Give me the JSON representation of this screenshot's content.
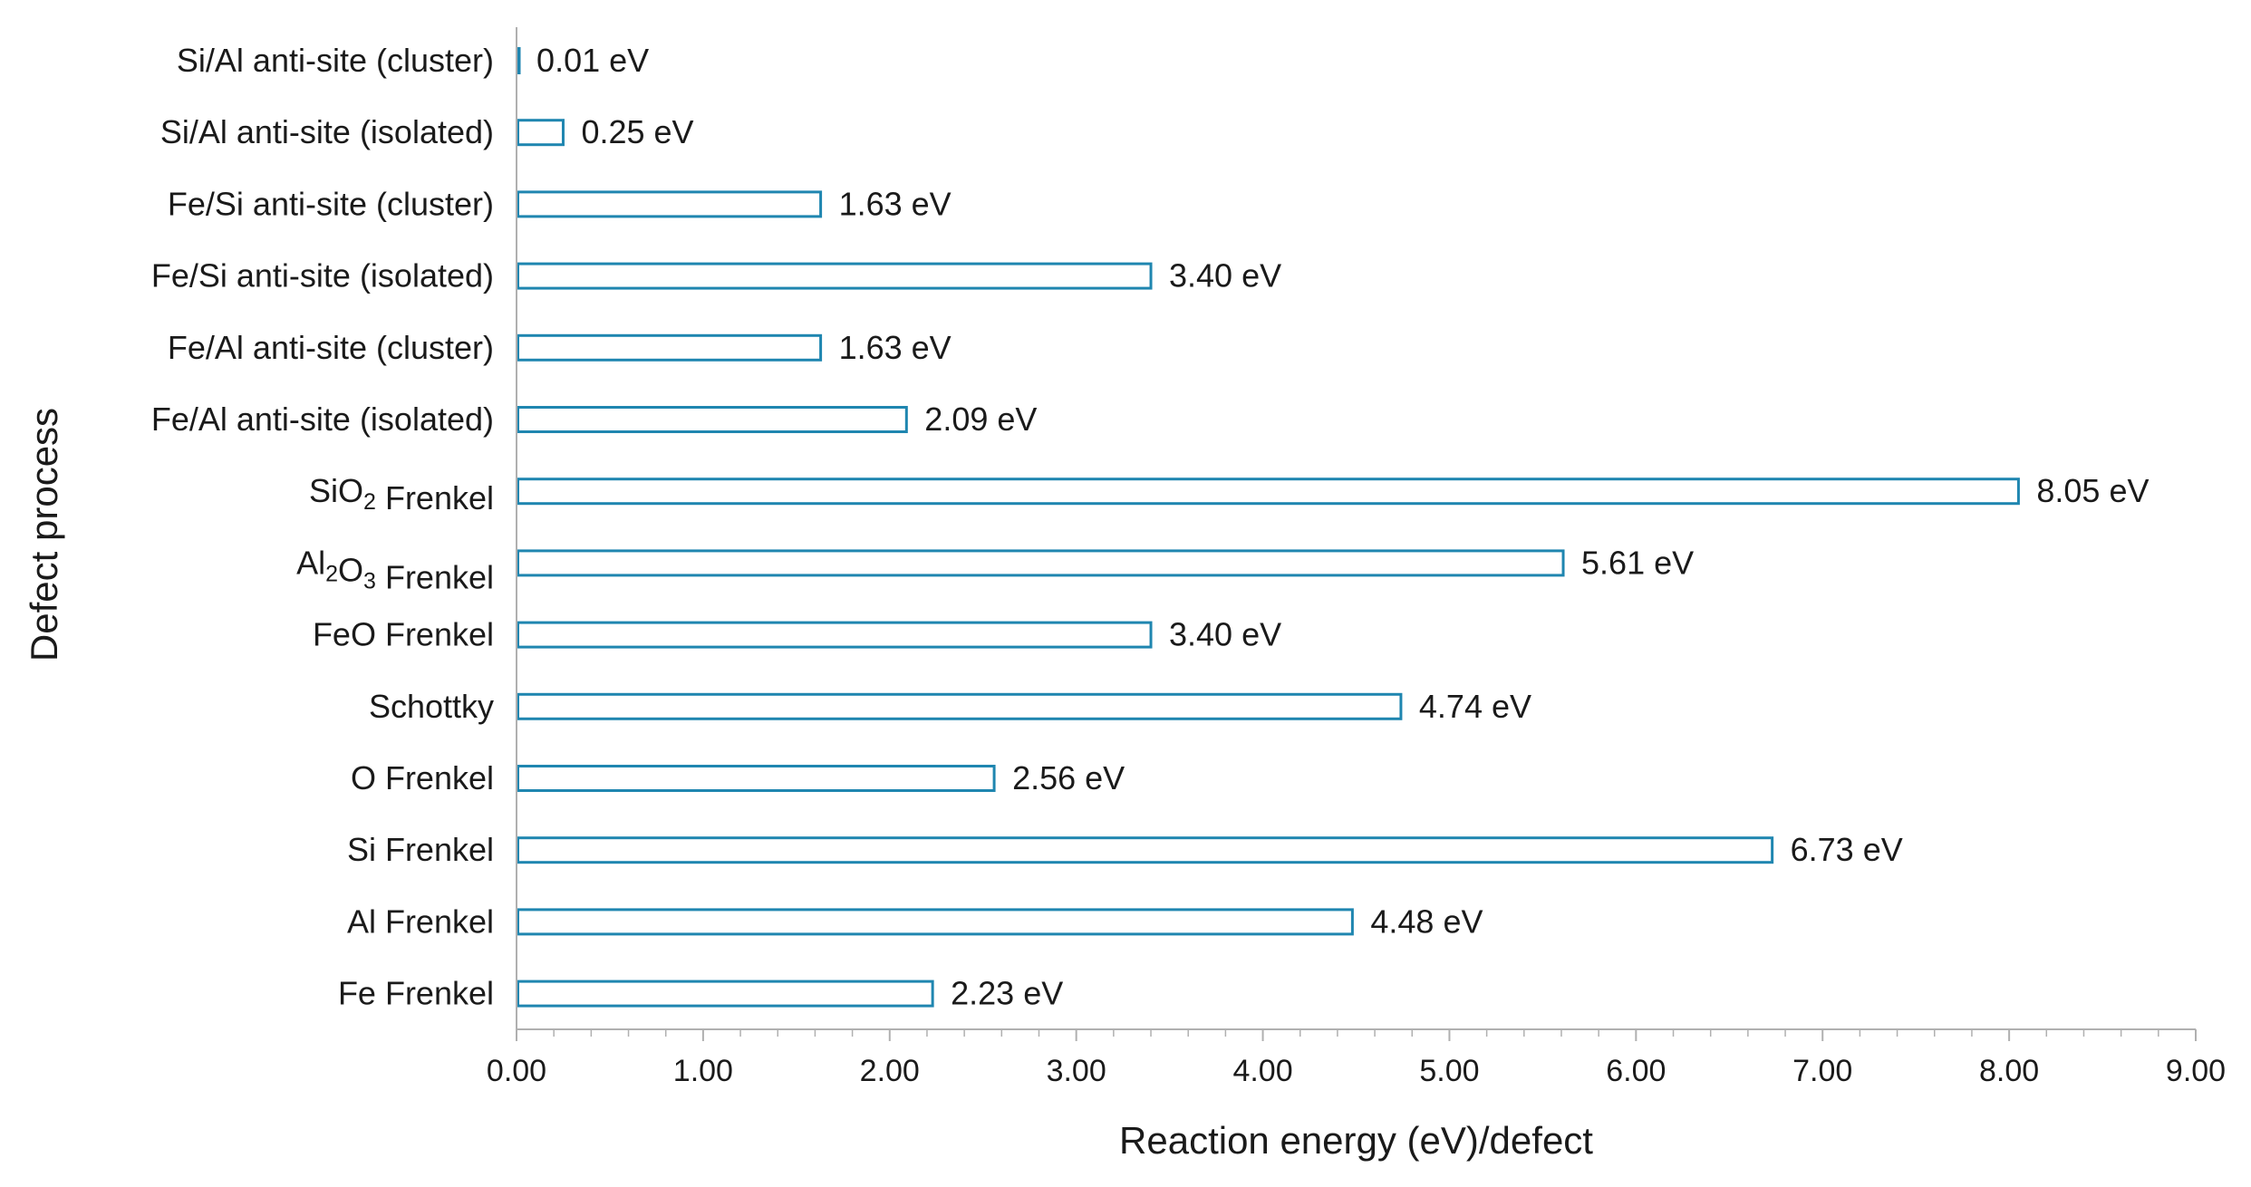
{
  "chart_data": {
    "type": "bar",
    "orientation": "horizontal",
    "title": "",
    "xlabel": "Reaction energy (eV)/defect",
    "ylabel": "Defect process",
    "xlim": [
      0,
      9
    ],
    "xticks": [
      0,
      1,
      2,
      3,
      4,
      5,
      6,
      7,
      8,
      9
    ],
    "xtick_labels": [
      "0.00",
      "1.00",
      "2.00",
      "3.00",
      "4.00",
      "5.00",
      "6.00",
      "7.00",
      "8.00",
      "9.00"
    ],
    "value_unit": "eV",
    "grid": false,
    "legend": "none",
    "colors": {
      "bar_stroke": "#1f86b0",
      "bar_fill": "#ffffff",
      "axis": "#b0b0b0"
    },
    "categories": [
      {
        "label": "Si/Al anti-site (cluster)"
      },
      {
        "label": "Si/Al anti-site (isolated)"
      },
      {
        "label": "Fe/Si anti-site (cluster)"
      },
      {
        "label": "Fe/Si anti-site (isolated)"
      },
      {
        "label": "Fe/Al anti-site (cluster)"
      },
      {
        "label": "Fe/Al anti-site (isolated)"
      },
      {
        "label": "SiO2 Frenkel",
        "parts": [
          [
            "Si",
            ""
          ],
          [
            "O",
            ""
          ],
          [
            "2",
            "sub"
          ],
          [
            " Frenkel",
            ""
          ]
        ]
      },
      {
        "label": "Al2O3 Frenkel",
        "parts": [
          [
            "Al",
            ""
          ],
          [
            "2",
            "sub"
          ],
          [
            "O",
            ""
          ],
          [
            "3",
            "sub"
          ],
          [
            " Frenkel",
            ""
          ]
        ]
      },
      {
        "label": "FeO Frenkel"
      },
      {
        "label": "Schottky"
      },
      {
        "label": "O Frenkel"
      },
      {
        "label": "Si Frenkel"
      },
      {
        "label": "Al Frenkel"
      },
      {
        "label": "Fe Frenkel"
      }
    ],
    "values": [
      0.01,
      0.25,
      1.63,
      3.4,
      1.63,
      2.09,
      8.05,
      5.61,
      3.4,
      4.74,
      2.56,
      6.73,
      4.48,
      2.23
    ],
    "value_labels": [
      "0.01 eV",
      "0.25 eV",
      "1.63 eV",
      "3.40 eV",
      "1.63 eV",
      "2.09 eV",
      "8.05 eV",
      "5.61 eV",
      "3.40 eV",
      "4.74 eV",
      "2.56 eV",
      "6.73 eV",
      "4.48 eV",
      "2.23 eV"
    ]
  }
}
